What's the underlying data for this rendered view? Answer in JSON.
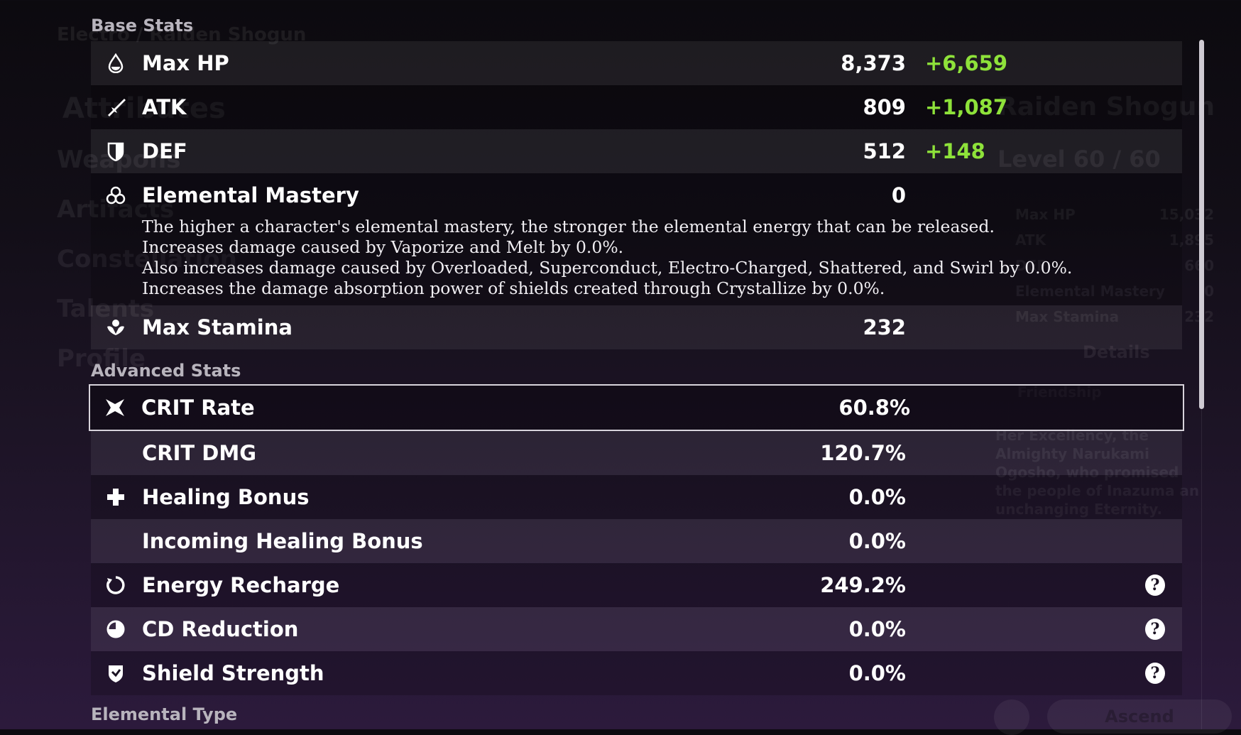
{
  "background": {
    "breadcrumb": "Electro / Raiden Shogun",
    "menu": [
      "Attributes",
      "Weapons",
      "Artifacts",
      "Constellation",
      "Talents",
      "Profile"
    ],
    "character_name": "Raiden Shogun",
    "level": "Level 60 / 60",
    "summary": [
      {
        "label": "Max HP",
        "value": "15,032"
      },
      {
        "label": "ATK",
        "value": "1,895"
      },
      {
        "label": "DEF",
        "value": "660"
      },
      {
        "label": "Elemental Mastery",
        "value": "0"
      },
      {
        "label": "Max Stamina",
        "value": "232"
      }
    ],
    "details": "Details",
    "friendship": "Friendship",
    "description": "Her Excellency, the Almighty Narukami Ogosho, who promised the people of Inazuma an unchanging Eternity.",
    "ascend": "Ascend"
  },
  "base_stats": {
    "title": "Base Stats",
    "rows": [
      {
        "label": "Max HP",
        "value": "8,373",
        "bonus": "+6,659",
        "icon": "hp-drop-icon"
      },
      {
        "label": "ATK",
        "value": "809",
        "bonus": "+1,087",
        "icon": "sword-icon"
      },
      {
        "label": "DEF",
        "value": "512",
        "bonus": "+148",
        "icon": "shield-icon"
      },
      {
        "label": "Elemental Mastery",
        "value": "0",
        "icon": "elemental-mastery-icon"
      },
      {
        "label": "Max Stamina",
        "value": "232",
        "icon": "stamina-icon"
      }
    ],
    "em_description": [
      "The higher a character's elemental mastery, the stronger the elemental energy that can be released.",
      "Increases damage caused by Vaporize and Melt by 0.0%.",
      "Also increases damage caused by Overloaded, Superconduct, Electro-Charged, Shattered, and Swirl by 0.0%.",
      "Increases the damage absorption power of shields created through Crystallize by 0.0%."
    ]
  },
  "advanced_stats": {
    "title": "Advanced Stats",
    "rows": [
      {
        "label": "CRIT Rate",
        "value": "60.8%",
        "icon": "crit-rate-icon",
        "selected": true
      },
      {
        "label": "CRIT DMG",
        "value": "120.7%"
      },
      {
        "label": "Healing Bonus",
        "value": "0.0%",
        "icon": "healing-cross-icon"
      },
      {
        "label": "Incoming Healing Bonus",
        "value": "0.0%"
      },
      {
        "label": "Energy Recharge",
        "value": "249.2%",
        "icon": "energy-recharge-icon",
        "help": "?"
      },
      {
        "label": "CD Reduction",
        "value": "0.0%",
        "icon": "cd-reduction-icon",
        "help": "?"
      },
      {
        "label": "Shield Strength",
        "value": "0.0%",
        "icon": "shield-strength-icon",
        "help": "?"
      }
    ]
  },
  "elemental_type": {
    "title": "Elemental Type"
  },
  "colors": {
    "bonus": "#8ee23a",
    "selected_border": "#d8d4dc"
  }
}
